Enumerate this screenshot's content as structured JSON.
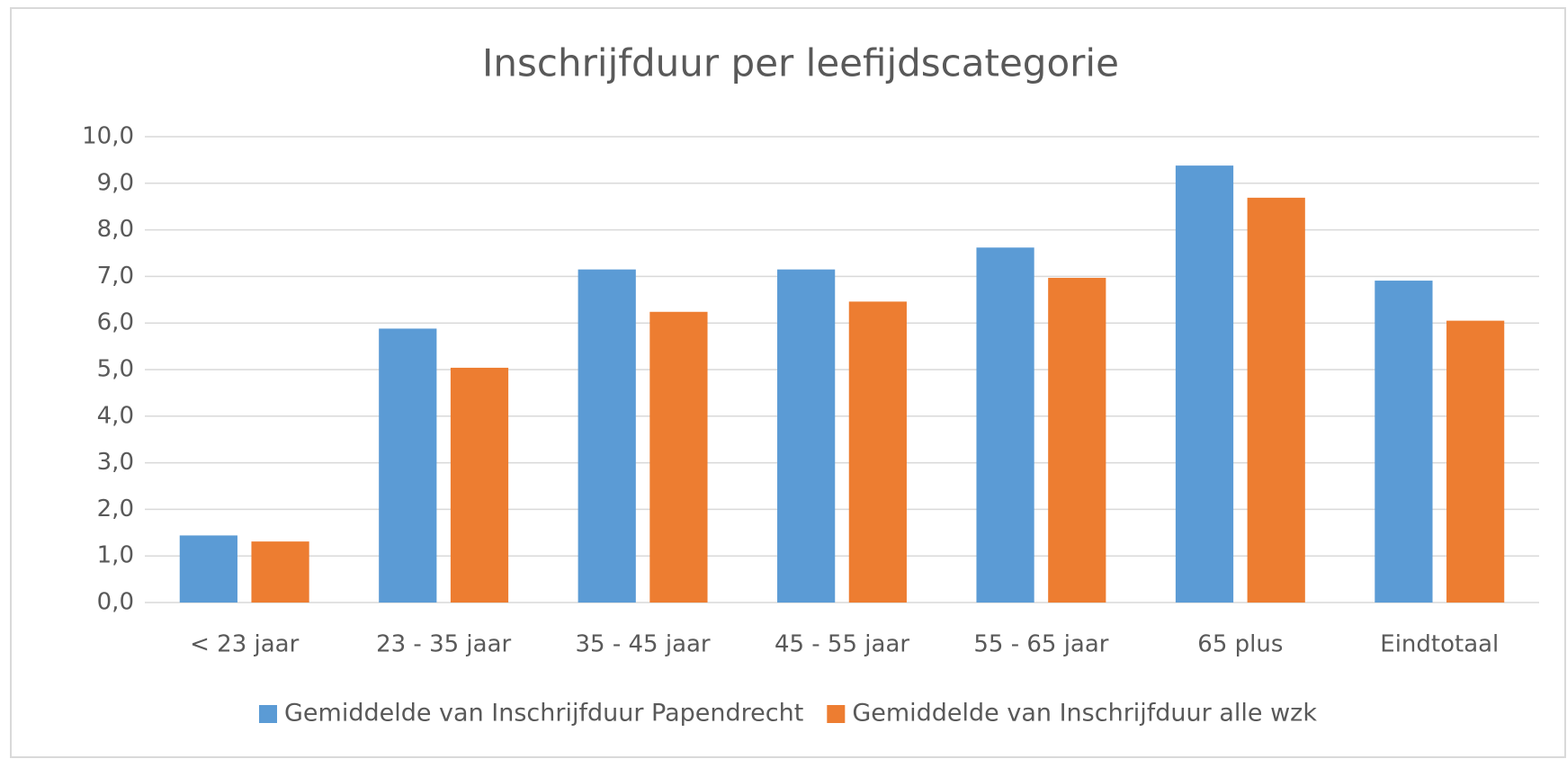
{
  "chart_data": {
    "type": "bar",
    "title": "Inschrijfduur per leefijdscategorie",
    "categories": [
      "< 23 jaar",
      "23 - 35 jaar",
      "35 - 45 jaar",
      "45 - 55 jaar",
      "55 - 65 jaar",
      "65 plus",
      "Eindtotaal"
    ],
    "series": [
      {
        "name": "Gemiddelde van Inschrijfduur Papendrecht",
        "color": "#5b9bd5",
        "values": [
          1.44,
          5.88,
          7.15,
          7.15,
          7.62,
          9.38,
          6.91
        ]
      },
      {
        "name": "Gemiddelde van Inschrijfduur alle wzk",
        "color": "#ed7d31",
        "values": [
          1.31,
          5.04,
          6.24,
          6.46,
          6.97,
          8.69,
          6.05
        ]
      }
    ],
    "ylim": [
      0,
      10
    ],
    "yticks": [
      {
        "value": 0,
        "label": "0,0"
      },
      {
        "value": 1,
        "label": "1,0"
      },
      {
        "value": 2,
        "label": "2,0"
      },
      {
        "value": 3,
        "label": "3,0"
      },
      {
        "value": 4,
        "label": "4,0"
      },
      {
        "value": 5,
        "label": "5,0"
      },
      {
        "value": 6,
        "label": "6,0"
      },
      {
        "value": 7,
        "label": "7,0"
      },
      {
        "value": 8,
        "label": "8,0"
      },
      {
        "value": 9,
        "label": "9,0"
      },
      {
        "value": 10,
        "label": "10,0"
      }
    ],
    "grid": true,
    "legend": "bottom"
  }
}
